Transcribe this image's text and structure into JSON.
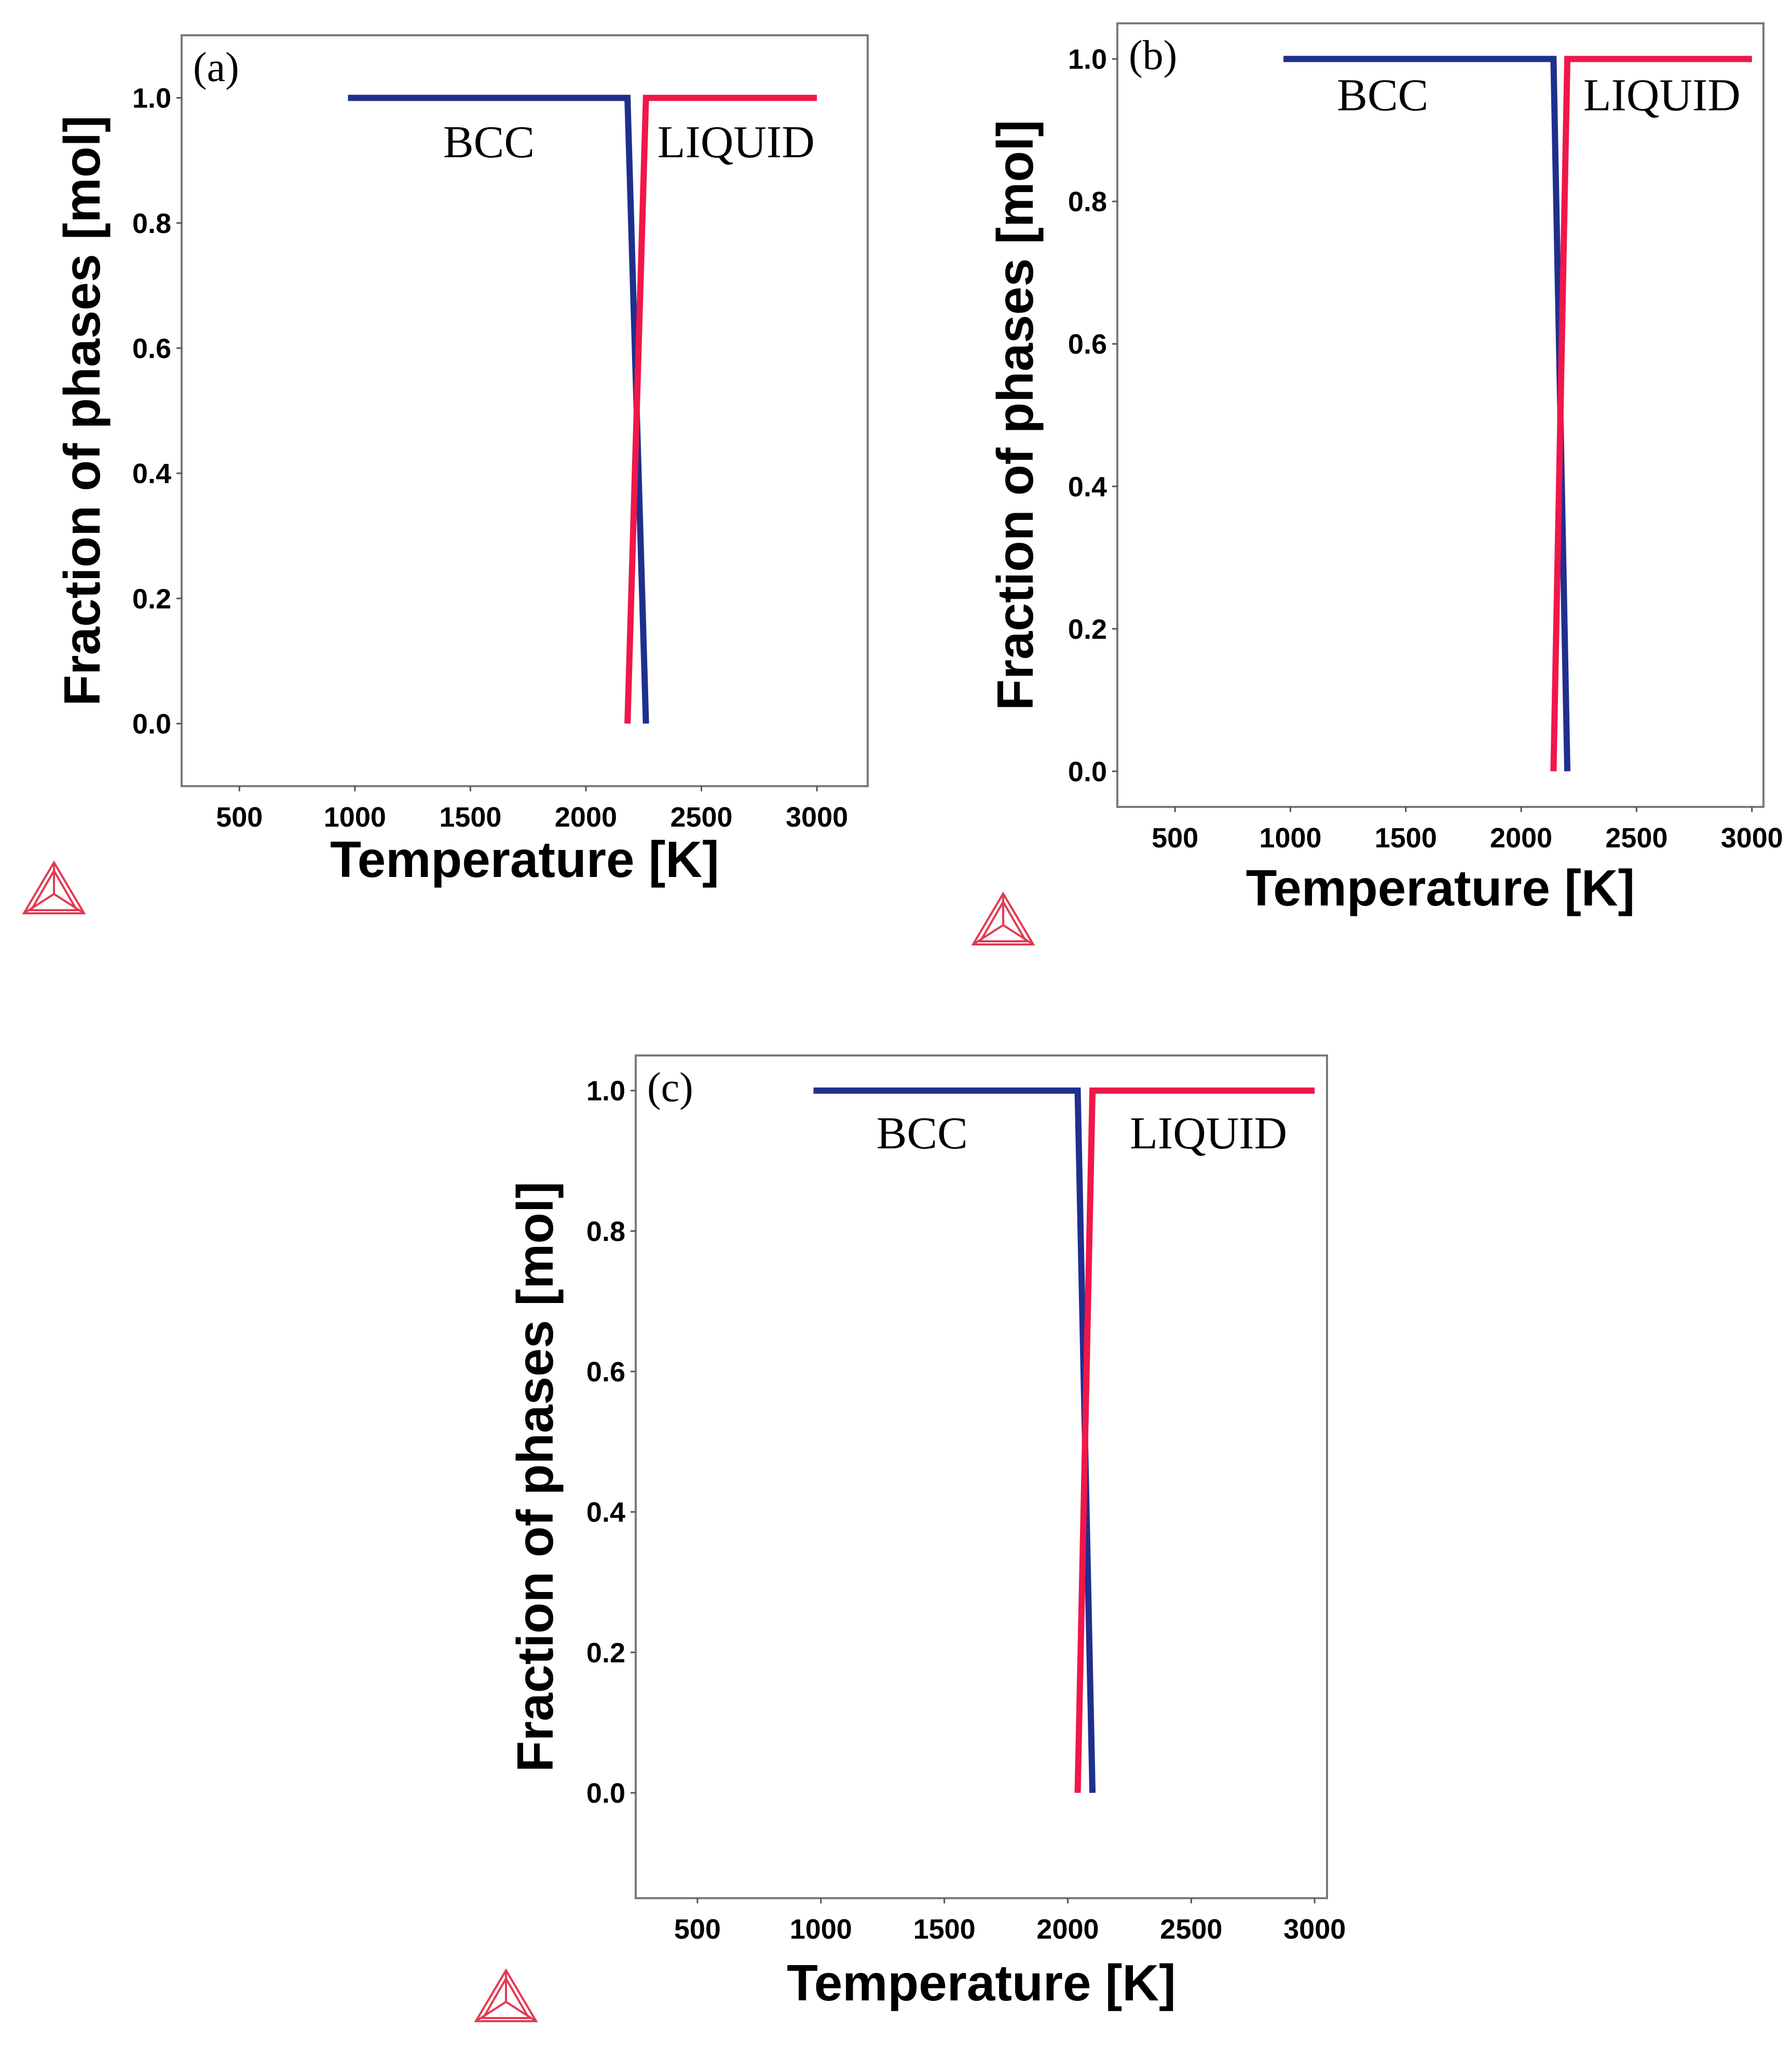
{
  "figure_title": "",
  "chart_data": [
    {
      "panel_label": "(a)",
      "type": "line",
      "xlabel": "Temperature [K]",
      "ylabel": "Fraction of phases [mol]",
      "xlim": [
        250,
        3220
      ],
      "ylim": [
        -0.1,
        1.1
      ],
      "xticks": [
        500,
        1000,
        1500,
        2000,
        2500,
        3000
      ],
      "yticks": [
        0.0,
        0.2,
        0.4,
        0.6,
        0.8,
        1.0
      ],
      "xtick_labels": [
        "500",
        "1000",
        "1500",
        "2000",
        "2500",
        "3000"
      ],
      "ytick_labels": [
        "0.0",
        "0.2",
        "0.4",
        "0.6",
        "0.8",
        "1.0"
      ],
      "series": [
        {
          "name": "BCC",
          "color": "#1f2f8f",
          "x": [
            970,
            2180,
            2260
          ],
          "y": [
            1.0,
            1.0,
            0.0
          ]
        },
        {
          "name": "LIQUID",
          "color": "#f0174a",
          "x": [
            2180,
            2260,
            3000
          ],
          "y": [
            0.0,
            1.0,
            1.0
          ]
        }
      ],
      "annotations": [
        {
          "text": "BCC",
          "x": 1580,
          "y": 0.93
        },
        {
          "text": "LIQUID",
          "x": 2650,
          "y": 0.93
        }
      ]
    },
    {
      "panel_label": "(b)",
      "type": "line",
      "xlabel": "Temperature [K]",
      "ylabel": "Fraction of phases [mol]",
      "xlim": [
        250,
        3050
      ],
      "ylim": [
        -0.05,
        1.05
      ],
      "xticks": [
        500,
        1000,
        1500,
        2000,
        2500,
        3000
      ],
      "yticks": [
        0.0,
        0.2,
        0.4,
        0.6,
        0.8,
        1.0
      ],
      "xtick_labels": [
        "500",
        "1000",
        "1500",
        "2000",
        "2500",
        "3000"
      ],
      "ytick_labels": [
        "0.0",
        "0.2",
        "0.4",
        "0.6",
        "0.8",
        "1.0"
      ],
      "series": [
        {
          "name": "BCC",
          "color": "#1f2f8f",
          "x": [
            970,
            2140,
            2200
          ],
          "y": [
            1.0,
            1.0,
            0.0
          ]
        },
        {
          "name": "LIQUID",
          "color": "#f0174a",
          "x": [
            2140,
            2200,
            3000
          ],
          "y": [
            0.0,
            1.0,
            1.0
          ]
        }
      ],
      "annotations": [
        {
          "text": "BCC",
          "x": 1400,
          "y": 0.95
        },
        {
          "text": "LIQUID",
          "x": 2610,
          "y": 0.95
        }
      ]
    },
    {
      "panel_label": "(c)",
      "type": "line",
      "xlabel": "Temperature [K]",
      "ylabel": "Fraction of phases [mol]",
      "xlim": [
        250,
        3050
      ],
      "ylim": [
        -0.15,
        1.05
      ],
      "xticks": [
        500,
        1000,
        1500,
        2000,
        2500,
        3000
      ],
      "yticks": [
        0.0,
        0.2,
        0.4,
        0.6,
        0.8,
        1.0
      ],
      "xtick_labels": [
        "500",
        "1000",
        "1500",
        "2000",
        "2500",
        "3000"
      ],
      "ytick_labels": [
        "0.0",
        "0.2",
        "0.4",
        "0.6",
        "0.8",
        "1.0"
      ],
      "series": [
        {
          "name": "BCC",
          "color": "#1f2f8f",
          "x": [
            970,
            2040,
            2100
          ],
          "y": [
            1.0,
            1.0,
            0.0
          ]
        },
        {
          "name": "LIQUID",
          "color": "#f0174a",
          "x": [
            2040,
            2100,
            3000
          ],
          "y": [
            0.0,
            1.0,
            1.0
          ]
        }
      ],
      "annotations": [
        {
          "text": "BCC",
          "x": 1410,
          "y": 0.94
        },
        {
          "text": "LIQUID",
          "x": 2570,
          "y": 0.94
        }
      ]
    }
  ]
}
